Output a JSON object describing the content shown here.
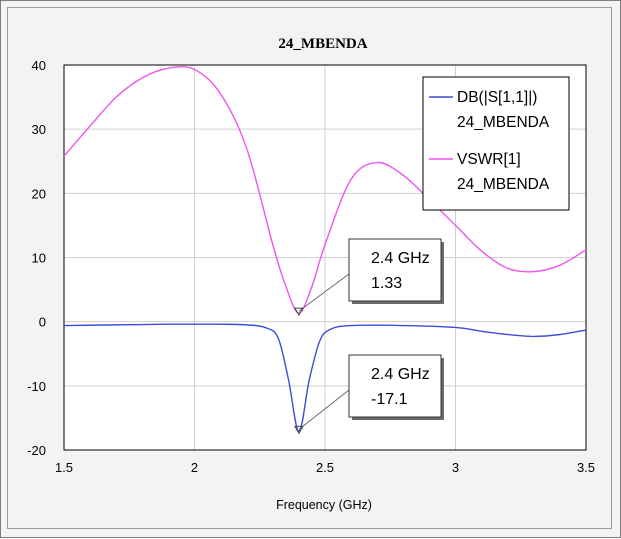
{
  "chart_data": {
    "type": "line",
    "title": "24_MBENDA",
    "xlabel": "Frequency (GHz)",
    "ylabel": "",
    "xlim": [
      1.5,
      3.5
    ],
    "ylim": [
      -20,
      40
    ],
    "x_ticks": [
      "1.5",
      "2",
      "2.5",
      "3",
      "3.5"
    ],
    "y_ticks": [
      "40",
      "30",
      "20",
      "10",
      "0",
      "-10",
      "-20"
    ],
    "grid": true,
    "legend_position": "top-right",
    "series": [
      {
        "name": "DB(|S[1,1]|)",
        "source": "24_MBENDA",
        "color": "#3b4fd6",
        "x": [
          1.5,
          1.7,
          1.9,
          2.1,
          2.2,
          2.27,
          2.32,
          2.36,
          2.4,
          2.44,
          2.48,
          2.52,
          2.6,
          2.8,
          3.0,
          3.1,
          3.2,
          3.3,
          3.4,
          3.5
        ],
        "y": [
          -0.6,
          -0.5,
          -0.4,
          -0.4,
          -0.5,
          -0.9,
          -2.5,
          -9.0,
          -17.1,
          -9.0,
          -3.0,
          -1.2,
          -0.6,
          -0.6,
          -0.9,
          -1.5,
          -2.0,
          -2.3,
          -2.0,
          -1.3
        ]
      },
      {
        "name": "VSWR[1]",
        "source": "24_MBENDA",
        "color": "#ee55ee",
        "x": [
          1.5,
          1.6,
          1.7,
          1.8,
          1.9,
          2.0,
          2.1,
          2.2,
          2.3,
          2.35,
          2.4,
          2.45,
          2.5,
          2.6,
          2.7,
          2.8,
          2.9,
          3.0,
          3.1,
          3.2,
          3.3,
          3.4,
          3.5
        ],
        "y": [
          25.8,
          30.5,
          35.0,
          38.0,
          39.5,
          39.3,
          35.5,
          27.0,
          12.0,
          5.5,
          1.33,
          5.5,
          12.0,
          22.2,
          24.8,
          22.8,
          19.0,
          15.0,
          11.0,
          8.3,
          7.8,
          8.8,
          11.2
        ]
      }
    ],
    "markers": [
      {
        "series": 1,
        "x": 2.4,
        "y": 1.33,
        "label_line1": "2.4 GHz",
        "label_line2": "1.33"
      },
      {
        "series": 0,
        "x": 2.4,
        "y": -17.1,
        "label_line1": "2.4 GHz",
        "label_line2": "-17.1"
      }
    ]
  }
}
